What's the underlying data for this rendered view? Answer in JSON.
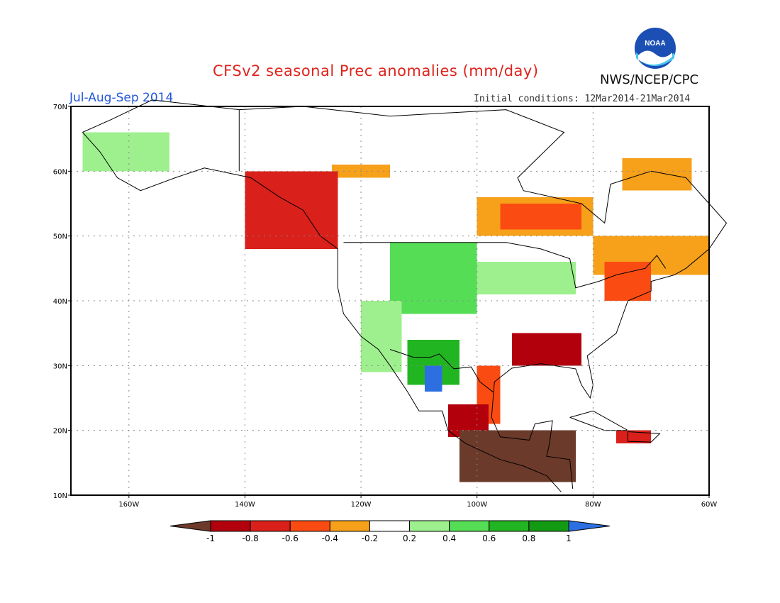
{
  "header": {
    "title": "CFSv2 seasonal Prec anomalies (mm/day)",
    "period": "Jul-Aug-Sep 2014",
    "initial_conditions": "Initial conditions: 12Mar2014-21Mar2014",
    "agency": "NWS/NCEP/CPC",
    "logo_text": "NOAA"
  },
  "map": {
    "lon_ticks": [
      "160W",
      "140W",
      "120W",
      "100W",
      "80W",
      "60W"
    ],
    "lat_ticks": [
      "70N",
      "60N",
      "50N",
      "40N",
      "30N",
      "20N",
      "10N"
    ],
    "lon_range": [
      -170,
      -60
    ],
    "lat_range": [
      10,
      70
    ]
  },
  "colorbar": {
    "labels": [
      "-1",
      "-0.8",
      "-0.6",
      "-0.4",
      "-0.2",
      "0.2",
      "0.4",
      "0.6",
      "0.8",
      "1"
    ],
    "colors": {
      "lt_-1": "#6b3a2a",
      "-1_-0.8": "#b3000d",
      "-0.8_-0.6": "#d9201a",
      "-0.6_-0.4": "#fa4c12",
      "-0.4_-0.2": "#f7a01a",
      "-0.2_0.2": "#ffffff",
      "0.2_0.4": "#9ef08e",
      "0.4_0.6": "#55dd55",
      "0.6_0.8": "#22b522",
      "0.8_1": "#139a13",
      "gt_1": "#2d6fe0"
    }
  },
  "anomaly_regions": [
    {
      "name": "alaska-wet",
      "class": "0.2_0.4",
      "lon": [
        -168,
        -153
      ],
      "lat": [
        60,
        66
      ]
    },
    {
      "name": "canada-dry-nw",
      "class": "-0.4_-0.2",
      "lon": [
        -125,
        -115
      ],
      "lat": [
        59,
        61
      ]
    },
    {
      "name": "bc-coast-dry",
      "class": "-0.8_-0.6",
      "lon": [
        -140,
        -124
      ],
      "lat": [
        48,
        60
      ]
    },
    {
      "name": "hudson-dry",
      "class": "-0.4_-0.2",
      "lon": [
        -100,
        -80
      ],
      "lat": [
        50,
        56
      ]
    },
    {
      "name": "ontario-dry",
      "class": "-0.6_-0.4",
      "lon": [
        -96,
        -82
      ],
      "lat": [
        51,
        55
      ]
    },
    {
      "name": "quebec-dry",
      "class": "-0.4_-0.2",
      "lon": [
        -80,
        -60
      ],
      "lat": [
        44,
        50
      ]
    },
    {
      "name": "labrador-dry",
      "class": "-0.4_-0.2",
      "lon": [
        -75,
        -63
      ],
      "lat": [
        57,
        62
      ]
    },
    {
      "name": "northeast-dry",
      "class": "-0.6_-0.4",
      "lon": [
        -78,
        -70
      ],
      "lat": [
        40,
        46
      ]
    },
    {
      "name": "rockies-wet",
      "class": "0.4_0.6",
      "lon": [
        -115,
        -100
      ],
      "lat": [
        38,
        49
      ]
    },
    {
      "name": "southwest-wet",
      "class": "0.6_0.8",
      "lon": [
        -112,
        -103
      ],
      "lat": [
        27,
        34
      ]
    },
    {
      "name": "sierra-madre-wet",
      "class": "gt_1",
      "lon": [
        -109,
        -106
      ],
      "lat": [
        26,
        30
      ]
    },
    {
      "name": "midwest-wet",
      "class": "0.2_0.4",
      "lon": [
        -100,
        -83
      ],
      "lat": [
        41,
        46
      ]
    },
    {
      "name": "southeast-dry",
      "class": "-1_-0.8",
      "lon": [
        -94,
        -82
      ],
      "lat": [
        30,
        35
      ]
    },
    {
      "name": "gulf-dry",
      "class": "-0.6_-0.4",
      "lon": [
        -100,
        -96
      ],
      "lat": [
        21,
        30
      ]
    },
    {
      "name": "mexico-dry",
      "class": "-1_-0.8",
      "lon": [
        -105,
        -98
      ],
      "lat": [
        19,
        24
      ]
    },
    {
      "name": "central-america-dry",
      "class": "lt_-1",
      "lon": [
        -103,
        -83
      ],
      "lat": [
        12,
        20
      ]
    },
    {
      "name": "caribbean-dry",
      "class": "-0.8_-0.6",
      "lon": [
        -76,
        -70
      ],
      "lat": [
        18,
        20
      ]
    },
    {
      "name": "nevada-wet",
      "class": "0.2_0.4",
      "lon": [
        -120,
        -113
      ],
      "lat": [
        29,
        40
      ]
    }
  ]
}
